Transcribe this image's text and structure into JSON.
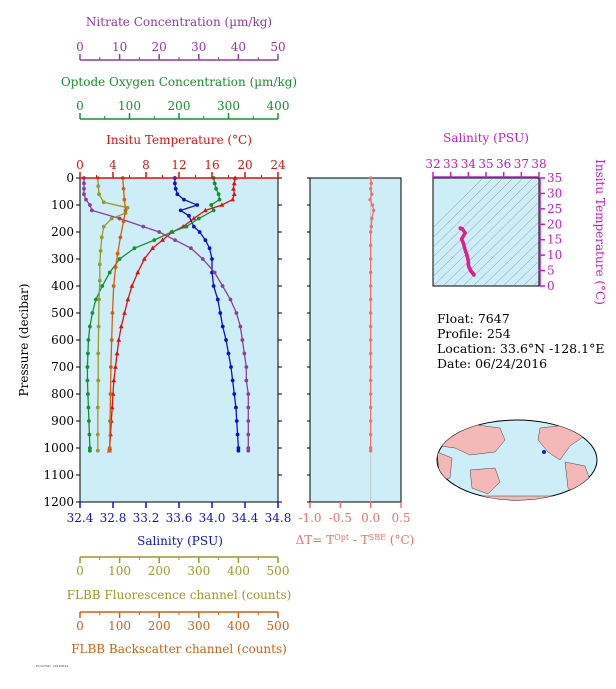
{
  "chart_data": [
    {
      "type": "line",
      "name": "main-profile",
      "y_axis": {
        "label": "Pressure (decibar)",
        "range": [
          1200,
          0
        ],
        "ticks": [
          0,
          100,
          200,
          300,
          400,
          500,
          600,
          700,
          800,
          900,
          1000,
          1100,
          1200
        ]
      },
      "grid": false,
      "axes": [
        {
          "key": "nitrate",
          "label": "Nitrate Concentration (µm/kg)",
          "range": [
            0,
            50
          ],
          "ticks": [
            0,
            10,
            20,
            30,
            40,
            50
          ],
          "color": "#8e3d9b"
        },
        {
          "key": "oxygen",
          "label": "Optode Oxygen Concentration (µm/kg)",
          "range": [
            0,
            400
          ],
          "ticks": [
            0,
            100,
            200,
            300,
            400
          ],
          "color": "#169030"
        },
        {
          "key": "temperature",
          "label": "Insitu Temperature (°C)",
          "range": [
            0,
            24
          ],
          "ticks": [
            0,
            4,
            8,
            12,
            16,
            20,
            24
          ],
          "color": "#e01010"
        },
        {
          "key": "salinity",
          "label": "Salinity (PSU)",
          "range": [
            32.4,
            34.8
          ],
          "ticks": [
            "32.4",
            "32.8",
            "33.2",
            "33.6",
            "34.0",
            "34.4",
            "34.8"
          ],
          "color": "#1010d0"
        },
        {
          "key": "fluorescence",
          "label": "FLBB Fluorescence channel (counts)",
          "range": [
            0,
            500
          ],
          "ticks": [
            0,
            100,
            200,
            300,
            400,
            500
          ],
          "color": "#9a9a2a"
        },
        {
          "key": "backscatter",
          "label": "FLBB Backscatter channel (counts)",
          "range": [
            0,
            500
          ],
          "ticks": [
            0,
            100,
            200,
            300,
            400,
            500
          ],
          "color": "#d06010"
        }
      ],
      "series": [
        {
          "axis": "temperature",
          "marker": "triangle",
          "points": [
            [
              18.8,
              0
            ],
            [
              18.7,
              20
            ],
            [
              18.6,
              40
            ],
            [
              18.7,
              60
            ],
            [
              18.5,
              80
            ],
            [
              17.2,
              100
            ],
            [
              15.2,
              120
            ],
            [
              13.8,
              150
            ],
            [
              12.5,
              180
            ],
            [
              11.2,
              200
            ],
            [
              10.0,
              230
            ],
            [
              8.8,
              260
            ],
            [
              7.8,
              300
            ],
            [
              7.0,
              350
            ],
            [
              6.3,
              400
            ],
            [
              5.8,
              450
            ],
            [
              5.4,
              500
            ],
            [
              5.0,
              550
            ],
            [
              4.7,
              600
            ],
            [
              4.5,
              650
            ],
            [
              4.3,
              700
            ],
            [
              4.1,
              750
            ],
            [
              4.0,
              800
            ],
            [
              3.9,
              850
            ],
            [
              3.8,
              900
            ],
            [
              3.7,
              950
            ],
            [
              3.6,
              1000
            ],
            [
              3.55,
              1010
            ]
          ]
        },
        {
          "axis": "salinity",
          "marker": "circle",
          "points": [
            [
              33.55,
              0
            ],
            [
              33.55,
              20
            ],
            [
              33.56,
              40
            ],
            [
              33.58,
              60
            ],
            [
              33.66,
              80
            ],
            [
              33.82,
              100
            ],
            [
              33.62,
              120
            ],
            [
              33.72,
              140
            ],
            [
              33.78,
              180
            ],
            [
              33.85,
              200
            ],
            [
              33.92,
              230
            ],
            [
              33.97,
              260
            ],
            [
              34.0,
              300
            ],
            [
              34.0,
              350
            ],
            [
              34.02,
              400
            ],
            [
              34.07,
              450
            ],
            [
              34.1,
              500
            ],
            [
              34.13,
              550
            ],
            [
              34.17,
              600
            ],
            [
              34.2,
              650
            ],
            [
              34.23,
              700
            ],
            [
              34.25,
              750
            ],
            [
              34.27,
              800
            ],
            [
              34.29,
              850
            ],
            [
              34.3,
              900
            ],
            [
              34.31,
              950
            ],
            [
              34.32,
              1000
            ],
            [
              34.32,
              1010
            ]
          ]
        },
        {
          "axis": "oxygen",
          "marker": "circle",
          "points": [
            [
              270,
              0
            ],
            [
              272,
              20
            ],
            [
              275,
              40
            ],
            [
              280,
              60
            ],
            [
              282,
              80
            ],
            [
              265,
              100
            ],
            [
              270,
              120
            ],
            [
              240,
              150
            ],
            [
              215,
              180
            ],
            [
              185,
              200
            ],
            [
              150,
              230
            ],
            [
              110,
              260
            ],
            [
              80,
              300
            ],
            [
              60,
              350
            ],
            [
              45,
              400
            ],
            [
              32,
              450
            ],
            [
              25,
              500
            ],
            [
              20,
              550
            ],
            [
              17,
              600
            ],
            [
              16,
              650
            ],
            [
              15,
              700
            ],
            [
              15,
              750
            ],
            [
              16,
              800
            ],
            [
              17,
              850
            ],
            [
              18,
              900
            ],
            [
              19,
              950
            ],
            [
              20,
              1000
            ],
            [
              20,
              1010
            ]
          ]
        },
        {
          "axis": "nitrate",
          "marker": "circle",
          "points": [
            [
              1,
              0
            ],
            [
              1,
              20
            ],
            [
              1,
              40
            ],
            [
              1,
              60
            ],
            [
              1.5,
              80
            ],
            [
              2.5,
              100
            ],
            [
              3,
              120
            ],
            [
              10,
              150
            ],
            [
              16,
              180
            ],
            [
              20,
              200
            ],
            [
              24,
              230
            ],
            [
              28,
              260
            ],
            [
              31,
              300
            ],
            [
              34,
              350
            ],
            [
              36,
              400
            ],
            [
              38,
              450
            ],
            [
              39.5,
              500
            ],
            [
              40.5,
              550
            ],
            [
              41,
              600
            ],
            [
              41.5,
              650
            ],
            [
              42,
              700
            ],
            [
              42,
              750
            ],
            [
              42.5,
              800
            ],
            [
              42.5,
              850
            ],
            [
              42.5,
              900
            ],
            [
              42.5,
              950
            ],
            [
              42.5,
              1000
            ],
            [
              42.5,
              1010
            ]
          ]
        },
        {
          "axis": "fluorescence",
          "marker": "circle",
          "points": [
            [
              45,
              0
            ],
            [
              46,
              30
            ],
            [
              48,
              60
            ],
            [
              60,
              90
            ],
            [
              120,
              110
            ],
            [
              115,
              130
            ],
            [
              80,
              150
            ],
            [
              60,
              180
            ],
            [
              55,
              220
            ],
            [
              52,
              270
            ],
            [
              50,
              320
            ],
            [
              50,
              380
            ],
            [
              48,
              450
            ],
            [
              47,
              550
            ],
            [
              46,
              650
            ],
            [
              46,
              750
            ],
            [
              45,
              850
            ],
            [
              45,
              950
            ],
            [
              45,
              1010
            ]
          ]
        },
        {
          "axis": "backscatter",
          "marker": "circle",
          "points": [
            [
              108,
              0
            ],
            [
              110,
              40
            ],
            [
              112,
              80
            ],
            [
              115,
              120
            ],
            [
              110,
              160
            ],
            [
              102,
              220
            ],
            [
              95,
              280
            ],
            [
              90,
              330
            ],
            [
              85,
              400
            ],
            [
              82,
              500
            ],
            [
              80,
              600
            ],
            [
              78,
              700
            ],
            [
              77,
              800
            ],
            [
              76,
              900
            ],
            [
              75,
              1000
            ],
            [
              75,
              1010
            ]
          ]
        }
      ]
    },
    {
      "type": "line",
      "name": "delta-temperature",
      "xlabel": "ΔT= T^Opt - T^SBE (°C)",
      "xlim": [
        -1.0,
        0.5
      ],
      "x_ticks": [
        "-1.0",
        "-0.5",
        "0.0",
        "0.5"
      ],
      "color": "#f07070",
      "points": [
        [
          0.0,
          0
        ],
        [
          0.01,
          20
        ],
        [
          0.0,
          40
        ],
        [
          0.02,
          60
        ],
        [
          -0.01,
          80
        ],
        [
          0.03,
          100
        ],
        [
          0.05,
          120
        ],
        [
          0.02,
          150
        ],
        [
          0.01,
          180
        ],
        [
          0.0,
          200
        ],
        [
          0.0,
          250
        ],
        [
          0.0,
          300
        ],
        [
          0.0,
          350
        ],
        [
          0.0,
          400
        ],
        [
          0.0,
          450
        ],
        [
          0.0,
          500
        ],
        [
          0.0,
          550
        ],
        [
          0.0,
          600
        ],
        [
          0.0,
          650
        ],
        [
          0.0,
          700
        ],
        [
          0.0,
          750
        ],
        [
          0.0,
          800
        ],
        [
          0.0,
          850
        ],
        [
          0.0,
          900
        ],
        [
          0.0,
          950
        ],
        [
          0.0,
          1000
        ],
        [
          0.0,
          1010
        ]
      ]
    },
    {
      "type": "scatter",
      "name": "ts-diagram",
      "xlabel": "Salinity (PSU)",
      "ylabel": "Insitu Temperature (°C)",
      "xlim": [
        32,
        38
      ],
      "ylim": [
        0,
        35
      ],
      "x_ticks": [
        32,
        33,
        34,
        35,
        36,
        37,
        38
      ],
      "y_ticks": [
        0,
        5,
        10,
        15,
        20,
        25,
        30,
        35
      ],
      "color": "#e0208a",
      "points": [
        [
          34.32,
          3.6
        ],
        [
          34.3,
          3.8
        ],
        [
          34.27,
          4.0
        ],
        [
          34.23,
          4.3
        ],
        [
          34.2,
          4.5
        ],
        [
          34.17,
          4.7
        ],
        [
          34.13,
          5.0
        ],
        [
          34.1,
          5.4
        ],
        [
          34.07,
          5.8
        ],
        [
          34.02,
          6.3
        ],
        [
          34.0,
          7.0
        ],
        [
          34.0,
          7.8
        ],
        [
          33.97,
          8.8
        ],
        [
          33.92,
          10.0
        ],
        [
          33.85,
          11.2
        ],
        [
          33.78,
          12.5
        ],
        [
          33.72,
          13.8
        ],
        [
          33.62,
          15.2
        ],
        [
          33.82,
          17.2
        ],
        [
          33.66,
          18.5
        ],
        [
          33.58,
          18.7
        ],
        [
          33.56,
          18.6
        ],
        [
          33.55,
          18.7
        ],
        [
          33.55,
          18.8
        ]
      ]
    }
  ],
  "float_info": {
    "float": "Float:  7647",
    "profile": "Profile:  254",
    "location": "Location:  33.6°N  -128.1°E",
    "date": "Date:  06/24/2016"
  },
  "footer_tag": "Float7647_20160624"
}
